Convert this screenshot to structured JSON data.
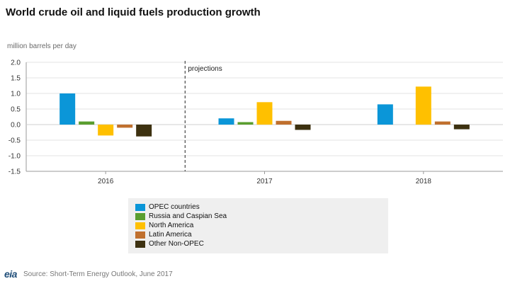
{
  "title": "World crude oil and liquid fuels production growth",
  "unit_label": "million barrels per day",
  "source": "Source: Short-Term Energy Outlook, June 2017",
  "logo_text": "eia",
  "chart_data": {
    "type": "bar",
    "title": "World crude oil and liquid fuels production growth",
    "ylabel": "million barrels per day",
    "ylim": [
      -1.5,
      2.0
    ],
    "yticks": [
      2.0,
      1.5,
      1.0,
      0.5,
      0.0,
      -0.5,
      -1.0,
      -1.5
    ],
    "ytick_labels": [
      "2.0",
      "1.5",
      "1.0",
      "0.5",
      "0.0",
      "-0.5",
      "-1.0",
      "-1.5"
    ],
    "grid": true,
    "categories": [
      "2016",
      "2017",
      "2018"
    ],
    "annotation": "projections",
    "legend_position": "bottom",
    "series": [
      {
        "name": "OPEC countries",
        "color": "#0b96d8",
        "values": [
          1.0,
          0.2,
          0.65
        ]
      },
      {
        "name": "Russia and Caspian Sea",
        "color": "#5a9e2f",
        "values": [
          0.1,
          0.08,
          null
        ]
      },
      {
        "name": "North America",
        "color": "#ffc000",
        "values": [
          -0.35,
          0.72,
          1.22
        ]
      },
      {
        "name": "Latin America",
        "color": "#c0702e",
        "values": [
          -0.1,
          0.12,
          0.1
        ]
      },
      {
        "name": "Other Non-OPEC",
        "color": "#3d3110",
        "values": [
          -0.38,
          -0.17,
          -0.15
        ]
      }
    ]
  }
}
